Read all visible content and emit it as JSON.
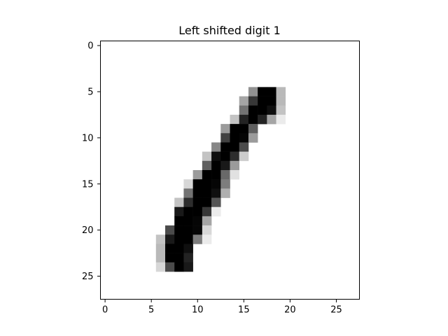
{
  "chart_data": {
    "type": "heatmap",
    "title": "Left shifted digit 1",
    "xlabel": "",
    "ylabel": "",
    "colormap": "gray_r",
    "value_range": [
      0,
      255
    ],
    "grid": false,
    "xlim": [
      -0.5,
      27.5
    ],
    "ylim": [
      27.5,
      -0.5
    ],
    "xticks": [
      0,
      5,
      10,
      15,
      20,
      25
    ],
    "yticks": [
      0,
      5,
      10,
      15,
      20,
      25
    ],
    "xtick_labels": [
      "0",
      "5",
      "10",
      "15",
      "20",
      "25"
    ],
    "ytick_labels": [
      "0",
      "5",
      "10",
      "15",
      "20",
      "25"
    ],
    "pixels": [
      {
        "row": 5,
        "values": {
          "16": 110,
          "17": 255,
          "18": 255,
          "19": 70
        }
      },
      {
        "row": 6,
        "values": {
          "15": 90,
          "16": 200,
          "17": 255,
          "18": 255,
          "19": 70
        }
      },
      {
        "row": 7,
        "values": {
          "15": 140,
          "16": 255,
          "17": 255,
          "18": 240,
          "19": 60
        }
      },
      {
        "row": 8,
        "values": {
          "14": 60,
          "15": 220,
          "16": 255,
          "17": 220,
          "18": 90,
          "19": 20
        }
      },
      {
        "row": 9,
        "values": {
          "13": 100,
          "14": 255,
          "15": 255,
          "16": 160
        }
      },
      {
        "row": 10,
        "values": {
          "13": 190,
          "14": 255,
          "15": 250,
          "16": 100
        }
      },
      {
        "row": 11,
        "values": {
          "12": 120,
          "13": 255,
          "14": 255,
          "15": 180
        }
      },
      {
        "row": 12,
        "values": {
          "11": 60,
          "12": 240,
          "13": 255,
          "14": 210,
          "15": 50
        }
      },
      {
        "row": 13,
        "values": {
          "11": 160,
          "12": 255,
          "13": 230,
          "14": 100
        }
      },
      {
        "row": 14,
        "values": {
          "10": 100,
          "11": 255,
          "12": 255,
          "13": 150,
          "14": 30
        }
      },
      {
        "row": 15,
        "values": {
          "9": 40,
          "10": 255,
          "11": 255,
          "12": 250,
          "13": 130
        }
      },
      {
        "row": 16,
        "values": {
          "9": 140,
          "10": 255,
          "11": 255,
          "12": 240,
          "13": 80
        }
      },
      {
        "row": 17,
        "values": {
          "8": 60,
          "9": 210,
          "10": 255,
          "11": 255,
          "12": 170
        }
      },
      {
        "row": 18,
        "values": {
          "8": 230,
          "9": 255,
          "10": 255,
          "11": 200,
          "12": 20
        }
      },
      {
        "row": 19,
        "values": {
          "8": 255,
          "9": 255,
          "10": 250,
          "11": 90
        }
      },
      {
        "row": 20,
        "values": {
          "7": 180,
          "8": 255,
          "9": 255,
          "10": 250,
          "11": 40
        }
      },
      {
        "row": 21,
        "values": {
          "6": 60,
          "7": 230,
          "8": 255,
          "9": 255,
          "10": 130,
          "11": 20
        }
      },
      {
        "row": 22,
        "values": {
          "6": 70,
          "7": 255,
          "8": 255,
          "9": 240
        }
      },
      {
        "row": 23,
        "values": {
          "6": 70,
          "7": 255,
          "8": 255,
          "9": 220
        }
      },
      {
        "row": 24,
        "values": {
          "6": 40,
          "7": 180,
          "8": 255,
          "9": 230
        }
      }
    ]
  }
}
